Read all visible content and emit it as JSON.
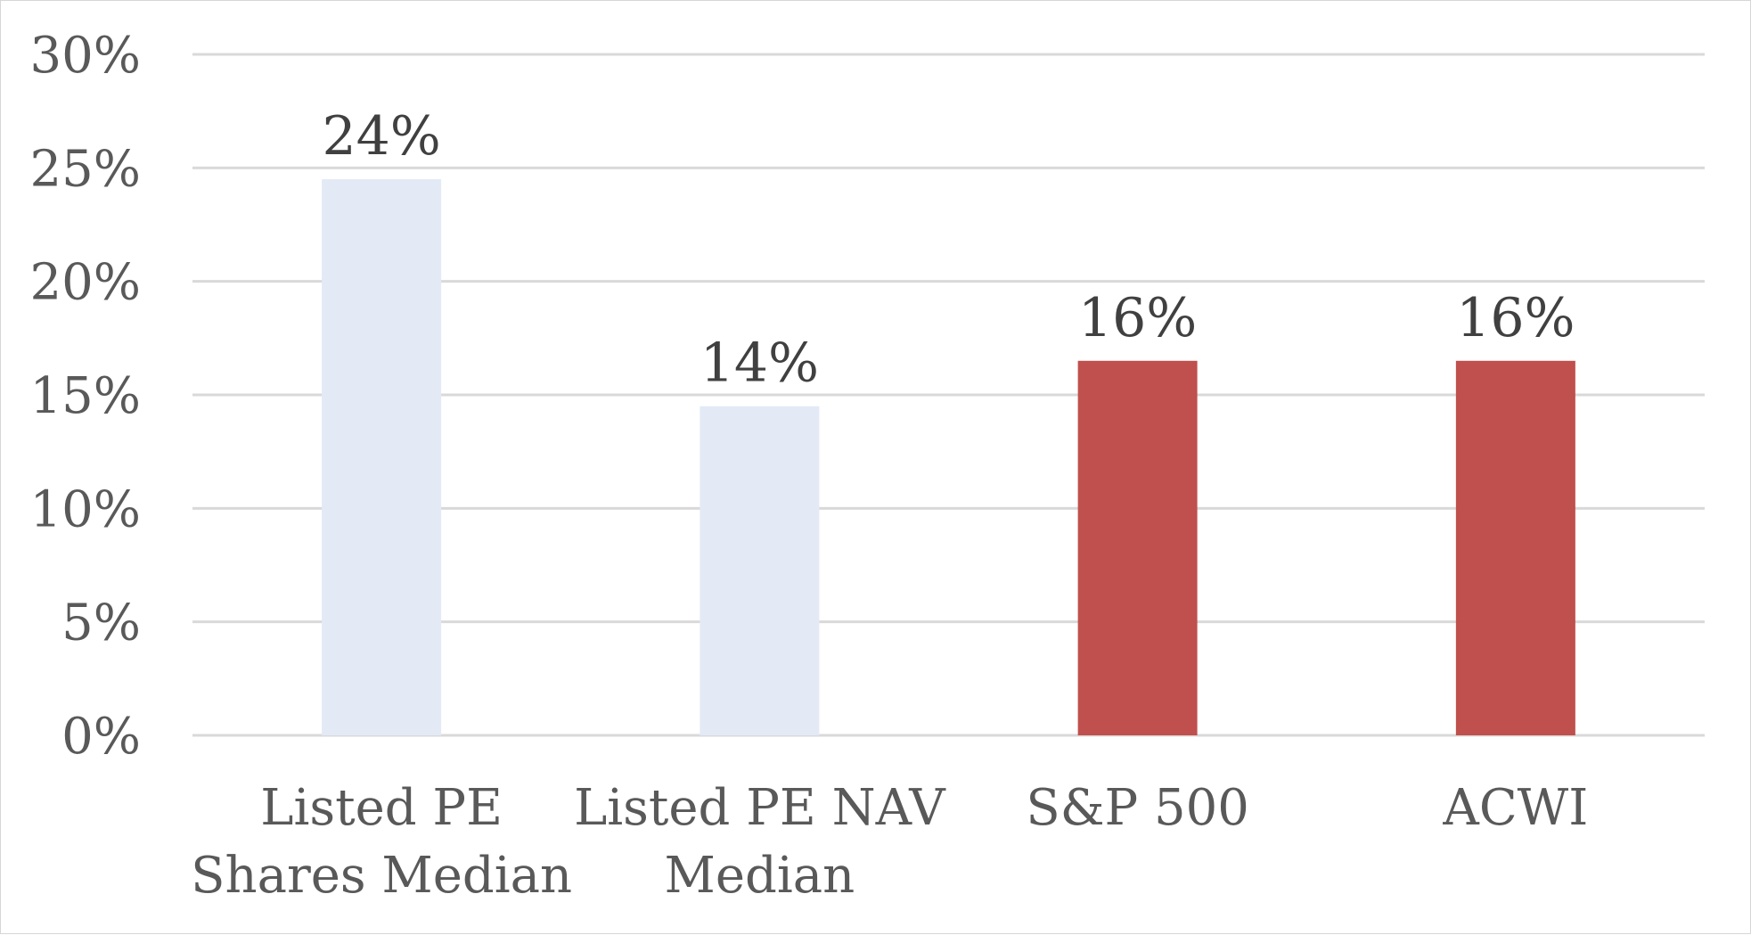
{
  "chart_data": {
    "type": "bar",
    "title": "",
    "xlabel": "",
    "ylabel": "",
    "categories": [
      [
        "Listed PE",
        "Shares Median"
      ],
      [
        "Listed PE NAV",
        "Median"
      ],
      [
        "S&P 500"
      ],
      [
        "ACWI"
      ]
    ],
    "values": [
      24.5,
      14.5,
      16.5,
      16.5
    ],
    "data_labels": [
      "24%",
      "14%",
      "16%",
      "16%"
    ],
    "bar_colors": [
      "#e3eaf6",
      "#e3eaf6",
      "#c0504d",
      "#c0504d"
    ],
    "ylim": [
      0,
      30
    ],
    "yticks": [
      0,
      5,
      10,
      15,
      20,
      25,
      30
    ],
    "ytick_labels": [
      "0%",
      "5%",
      "10%",
      "15%",
      "20%",
      "25%",
      "30%"
    ],
    "grid": true,
    "legend": "none"
  }
}
